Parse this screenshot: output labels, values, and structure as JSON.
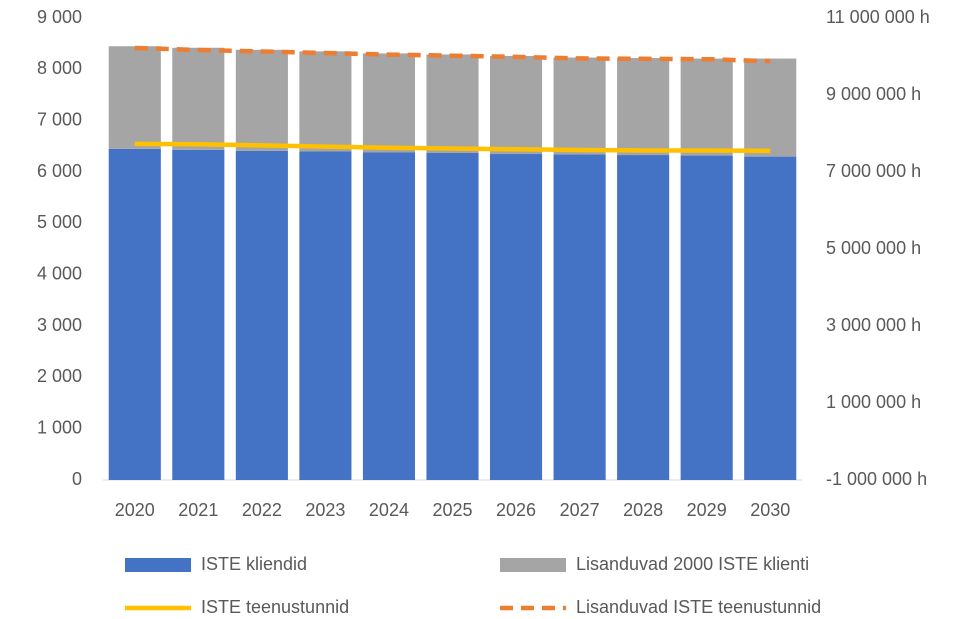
{
  "chart_data": {
    "type": "bar",
    "categories": [
      "2020",
      "2021",
      "2022",
      "2023",
      "2024",
      "2025",
      "2026",
      "2027",
      "2028",
      "2029",
      "2030"
    ],
    "series": [
      {
        "name": "ISTE kliendid",
        "type": "bar",
        "color": "#4472c4",
        "values": [
          6450,
          6430,
          6410,
          6400,
          6380,
          6370,
          6350,
          6340,
          6330,
          6320,
          6300
        ]
      },
      {
        "name": "Lisanduvad 2000 ISTE klienti",
        "type": "bar",
        "color": "#a5a5a5",
        "values": [
          2000,
          1990,
          1970,
          1950,
          1930,
          1920,
          1910,
          1890,
          1890,
          1890,
          1910
        ]
      },
      {
        "name": "ISTE teenustunnid",
        "type": "line",
        "axis": "y2",
        "color": "#ffc000",
        "dashed": false,
        "values": [
          7730000,
          7720000,
          7690000,
          7660000,
          7630000,
          7610000,
          7590000,
          7570000,
          7560000,
          7560000,
          7550000
        ]
      },
      {
        "name": "Lisanduvad ISTE teenustunnid",
        "type": "line",
        "axis": "y2",
        "color": "#ed7d31",
        "dashed": true,
        "values": [
          10220000,
          10170000,
          10130000,
          10090000,
          10050000,
          10020000,
          9990000,
          9950000,
          9940000,
          9930000,
          9880000
        ]
      }
    ],
    "stacked": true,
    "ylim": [
      0,
      9000
    ],
    "yticks": [
      0,
      {
        "value": 1000,
        "label": "1 000"
      },
      {
        "value": 2000,
        "label": "2 000"
      },
      {
        "value": 3000,
        "label": "3 000"
      },
      {
        "value": 4000,
        "label": "4 000"
      },
      {
        "value": 5000,
        "label": "5 000"
      },
      {
        "value": 6000,
        "label": "6 000"
      },
      {
        "value": 7000,
        "label": "7 000"
      },
      {
        "value": 8000,
        "label": "8 000"
      },
      {
        "value": 9000,
        "label": "9 000"
      }
    ],
    "y2lim": [
      -1000000,
      11000000
    ],
    "y2ticks": [
      {
        "value": -1000000,
        "label": "-1 000 000 h"
      },
      {
        "value": 1000000,
        "label": "1 000 000 h"
      },
      {
        "value": 3000000,
        "label": "3 000 000 h"
      },
      {
        "value": 5000000,
        "label": "5 000 000 h"
      },
      {
        "value": 7000000,
        "label": "7 000 000 h"
      },
      {
        "value": 9000000,
        "label": "9 000 000 h"
      },
      {
        "value": 11000000,
        "label": "11 000 000 h"
      }
    ],
    "grid": false,
    "legend": "bottom"
  }
}
